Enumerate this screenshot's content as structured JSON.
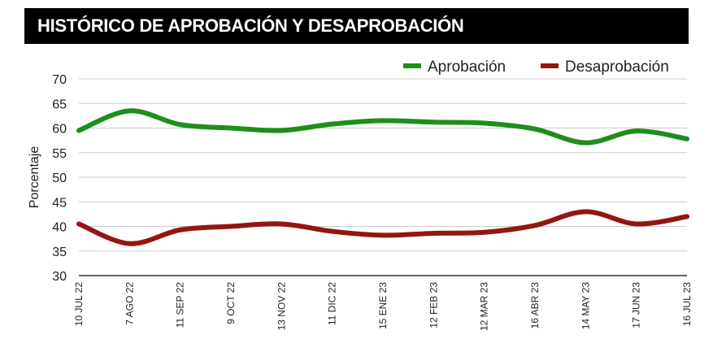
{
  "chart_data": {
    "type": "line",
    "title": "HISTÓRICO DE APROBACIÓN Y DESAPROBACIÓN",
    "ylabel": "Porcentaje",
    "xlabel": "",
    "ylim": [
      30,
      70
    ],
    "yticks": [
      30,
      35,
      40,
      45,
      50,
      55,
      60,
      65,
      70
    ],
    "grid": true,
    "legend_placement": "top-right",
    "categories": [
      "10 JUL 22",
      "7 AGO 22",
      "11 SEP 22",
      "9 OCT 22",
      "13 NOV 22",
      "11 DIC 22",
      "15 ENE 23",
      "12 FEB 23",
      "12 MAR 23",
      "16 ABR 23",
      "14 MAY 23",
      "17 JUN 23",
      "16 JUL 23"
    ],
    "series": [
      {
        "name": "Aprobación",
        "color": "#1e8f1a",
        "values": [
          59.5,
          63.5,
          60.7,
          60,
          59.5,
          60.8,
          61.5,
          61.2,
          61,
          59.8,
          57,
          59.4,
          57.8
        ]
      },
      {
        "name": "Desaprobación",
        "color": "#931610",
        "values": [
          40.5,
          36.5,
          39.3,
          40,
          40.5,
          39,
          38.2,
          38.6,
          38.8,
          40.2,
          43,
          40.5,
          42
        ]
      }
    ]
  }
}
